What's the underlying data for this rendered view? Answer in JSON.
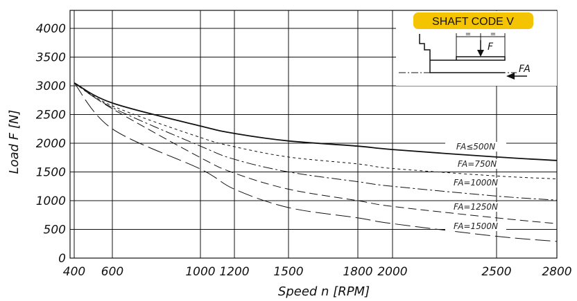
{
  "chart_data": {
    "type": "line",
    "title": "",
    "xlabel": "Speed n [RPM]",
    "ylabel": "Load F [N]",
    "x_ticks": [
      400,
      600,
      1000,
      1200,
      1500,
      1800,
      2000,
      2500,
      2800
    ],
    "x_tick_labels": [
      "400",
      "600",
      "1000",
      "1200",
      "1500",
      "1800",
      "2000",
      "2500",
      "2800"
    ],
    "y_ticks": [
      0,
      500,
      1000,
      1500,
      2000,
      2500,
      3000,
      3500,
      4000
    ],
    "y_tick_labels": [
      "0",
      "500",
      "1000",
      "1500",
      "2000",
      "2500",
      "3000",
      "3500",
      "4000"
    ],
    "xlim": [
      400,
      2800
    ],
    "ylim": [
      0,
      4000
    ],
    "grid": true,
    "series": [
      {
        "name": "FA≤500N",
        "style": "solid",
        "x": [
          400,
          600,
          1000,
          1200,
          1500,
          1800,
          2000,
          2500,
          2800
        ],
        "y": [
          3050,
          2700,
          2300,
          2170,
          2040,
          1950,
          1890,
          1760,
          1700
        ]
      },
      {
        "name": "FA=750N",
        "style": "dotted",
        "x": [
          400,
          600,
          1000,
          1200,
          1500,
          1800,
          2000,
          2500,
          2800
        ],
        "y": [
          3050,
          2650,
          2100,
          1940,
          1760,
          1640,
          1560,
          1430,
          1380
        ]
      },
      {
        "name": "FA=1000N",
        "style": "dashdot",
        "x": [
          400,
          600,
          1000,
          1200,
          1500,
          1800,
          2000,
          2500,
          2800
        ],
        "y": [
          3050,
          2620,
          1950,
          1720,
          1500,
          1330,
          1250,
          1080,
          1010
        ]
      },
      {
        "name": "FA=1250N",
        "style": "dashed",
        "x": [
          400,
          600,
          1000,
          1200,
          1500,
          1800,
          2000,
          2500,
          2800
        ],
        "y": [
          3050,
          2600,
          1750,
          1480,
          1200,
          1000,
          900,
          700,
          600
        ]
      },
      {
        "name": "FA=1500N",
        "style": "longdash",
        "x": [
          400,
          600,
          1000,
          1200,
          1500,
          1800,
          2000,
          2500,
          2800
        ],
        "y": [
          3050,
          2250,
          1550,
          1200,
          880,
          700,
          600,
          380,
          290
        ]
      }
    ]
  },
  "inset": {
    "badge_text": "SHAFT CODE V",
    "badge_color": "#f5c400",
    "force_label": "F",
    "axial_label": "FA",
    "equal_mark": "="
  }
}
